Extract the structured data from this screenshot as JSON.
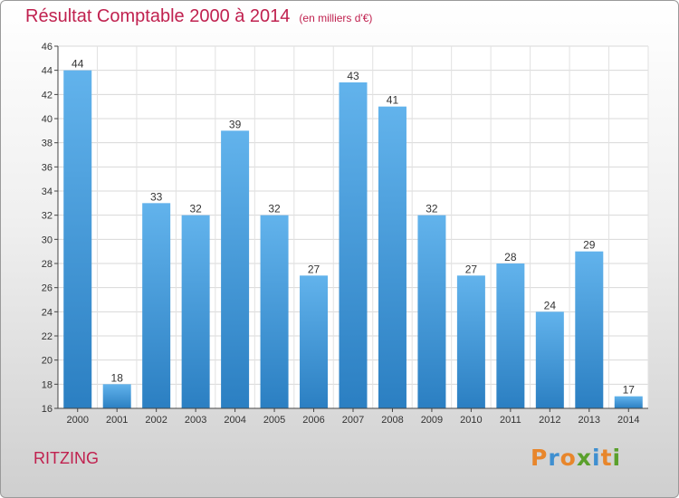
{
  "title": "Résultat Comptable 2000 à 2014",
  "subtitle": "(en milliers d'€)",
  "location": "RITZING",
  "logo": {
    "text": "Proxiti",
    "letters": [
      "P",
      "r",
      "o",
      "x",
      "i",
      "t",
      "i"
    ],
    "colors": [
      "#e8862b",
      "#3f8fd0",
      "#e8862b",
      "#5aa02c",
      "#3f8fd0",
      "#e8862b",
      "#5aa02c"
    ]
  },
  "colors": {
    "bar_top": "#62b3ec",
    "bar_bottom": "#2b7fc2",
    "title": "#c0214f"
  },
  "chart_data": {
    "type": "bar",
    "title": "Résultat Comptable 2000 à 2014",
    "subtitle": "(en milliers d'€)",
    "categories": [
      "2000",
      "2001",
      "2002",
      "2003",
      "2004",
      "2005",
      "2006",
      "2007",
      "2008",
      "2009",
      "2010",
      "2011",
      "2012",
      "2013",
      "2014"
    ],
    "values": [
      44,
      18,
      33,
      32,
      39,
      32,
      27,
      43,
      41,
      32,
      27,
      28,
      24,
      29,
      17
    ],
    "yticks": [
      16,
      18,
      20,
      22,
      24,
      26,
      28,
      30,
      32,
      34,
      36,
      38,
      40,
      42,
      44,
      46
    ],
    "ylim": [
      16,
      46
    ],
    "xlabel": "",
    "ylabel": "",
    "grid": true
  }
}
